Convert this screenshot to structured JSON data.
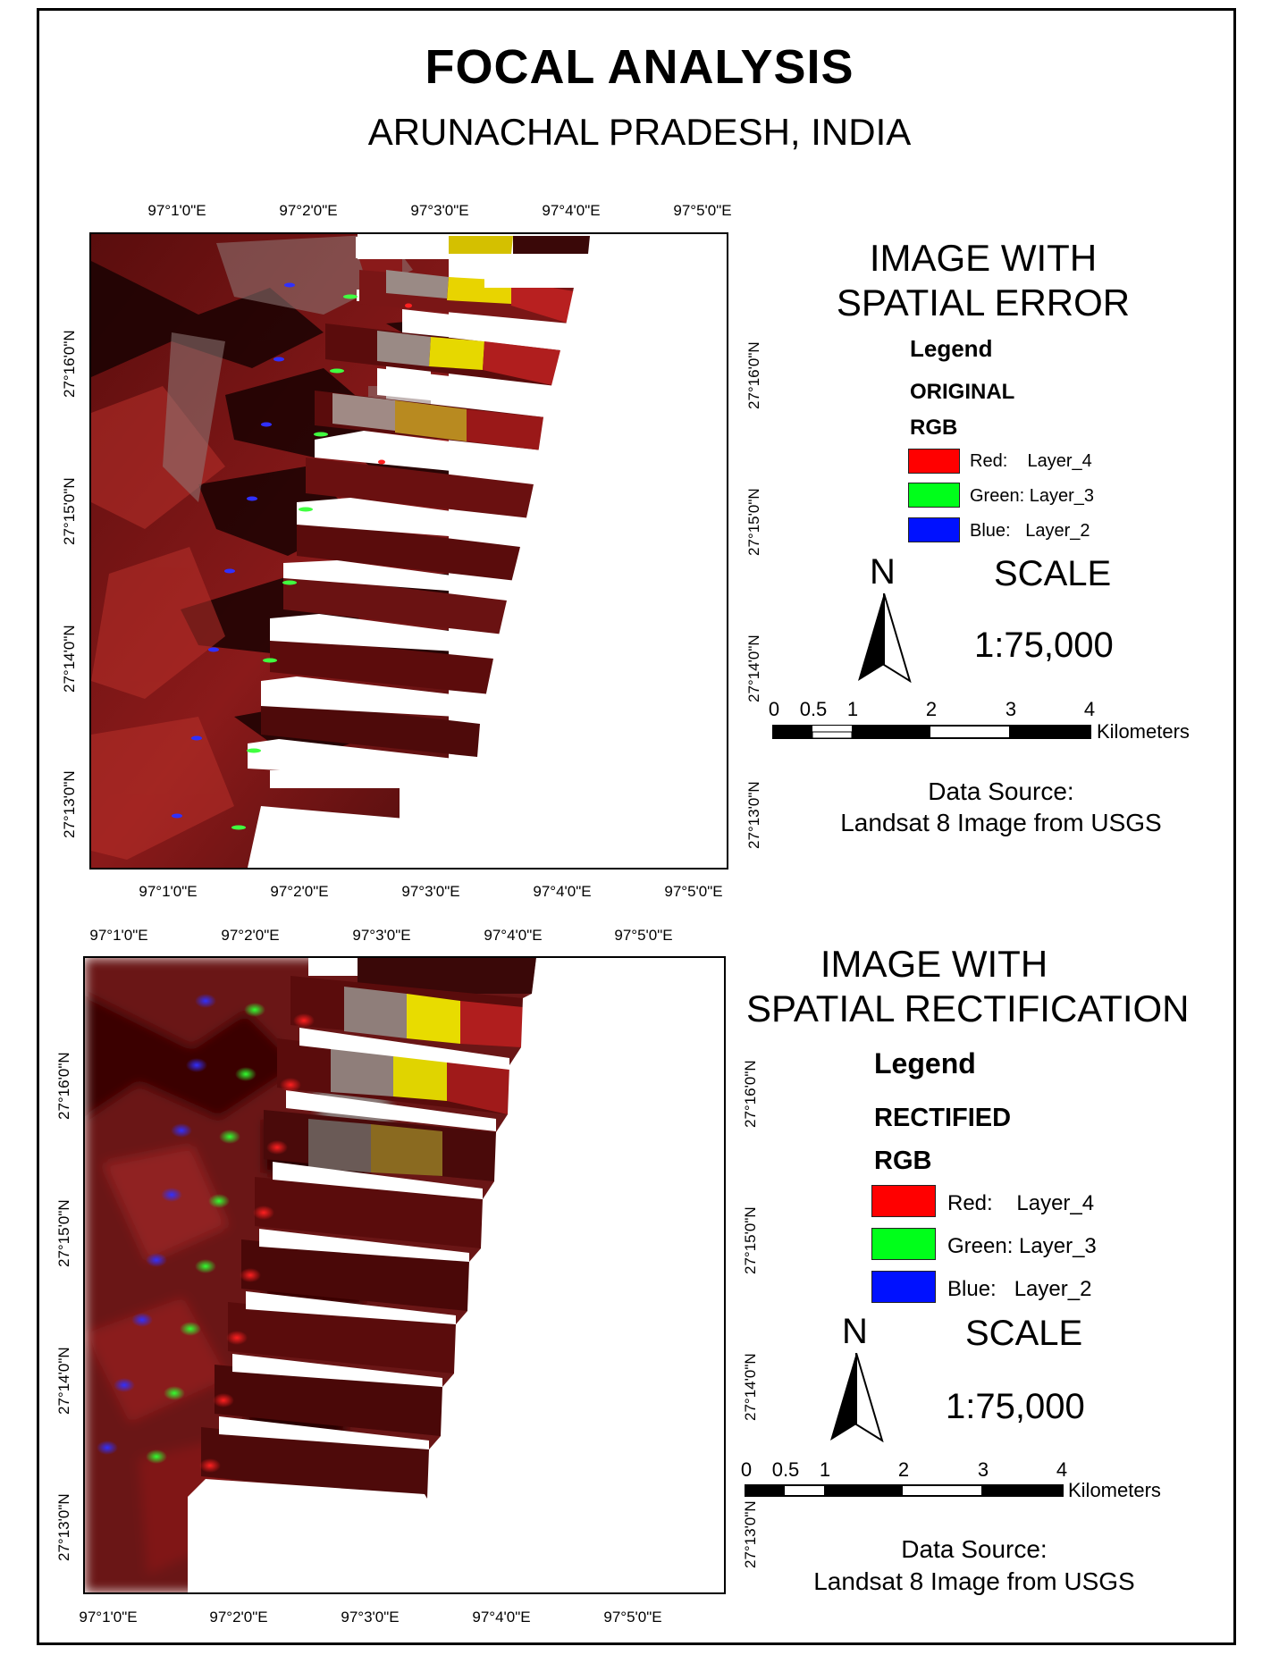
{
  "title": "FOCAL ANALYSIS",
  "subtitle": "ARUNACHAL PRADESH, INDIA",
  "colors": {
    "red": "#ff0000",
    "green": "#00ff1a",
    "blue": "#0011ff",
    "terrain": "#7a1414",
    "highlight": "#e8e000"
  },
  "map_top": {
    "lon_labels": [
      "97°1'0\"E",
      "97°2'0\"E",
      "97°3'0\"E",
      "97°4'0\"E",
      "97°5'0\"E"
    ],
    "lat_labels": [
      "27°16'0\"N",
      "27°15'0\"N",
      "27°14'0\"N",
      "27°13'0\"N"
    ],
    "panel": {
      "title_line1": "IMAGE WITH",
      "title_line2": "SPATIAL ERROR",
      "legend": "Legend",
      "layer_name": "ORIGINAL",
      "rgb": "RGB",
      "items": [
        {
          "label": "Red:    Layer_4",
          "color": "#ff0000"
        },
        {
          "label": "Green: Layer_3",
          "color": "#00ff1a"
        },
        {
          "label": "Blue:   Layer_2",
          "color": "#0011ff"
        }
      ],
      "north": "N",
      "scale_word": "SCALE",
      "scale_ratio": "1:75,000",
      "scale_numbers": [
        "0",
        "0.5",
        "1",
        "2",
        "3",
        "4"
      ],
      "scale_unit": "Kilometers",
      "source_line1": "Data Source:",
      "source_line2": "Landsat 8 Image from USGS"
    }
  },
  "map_bottom": {
    "lon_labels": [
      "97°1'0\"E",
      "97°2'0\"E",
      "97°3'0\"E",
      "97°4'0\"E",
      "97°5'0\"E"
    ],
    "lat_labels": [
      "27°16'0\"N",
      "27°15'0\"N",
      "27°14'0\"N",
      "27°13'0\"N"
    ],
    "panel": {
      "title_line1": "IMAGE WITH",
      "title_line2": "SPATIAL RECTIFICATION",
      "legend": "Legend",
      "layer_name": "RECTIFIED",
      "rgb": "RGB",
      "items": [
        {
          "label": "Red:    Layer_4",
          "color": "#ff0000"
        },
        {
          "label": "Green: Layer_3",
          "color": "#00ff1a"
        },
        {
          "label": "Blue:   Layer_2",
          "color": "#0011ff"
        }
      ],
      "north": "N",
      "scale_word": "SCALE",
      "scale_ratio": "1:75,000",
      "scale_numbers": [
        "0",
        "0.5",
        "1",
        "2",
        "3",
        "4"
      ],
      "scale_unit": "Kilometers",
      "source_line1": "Data Source:",
      "source_line2": "Landsat 8 Image from USGS"
    }
  }
}
